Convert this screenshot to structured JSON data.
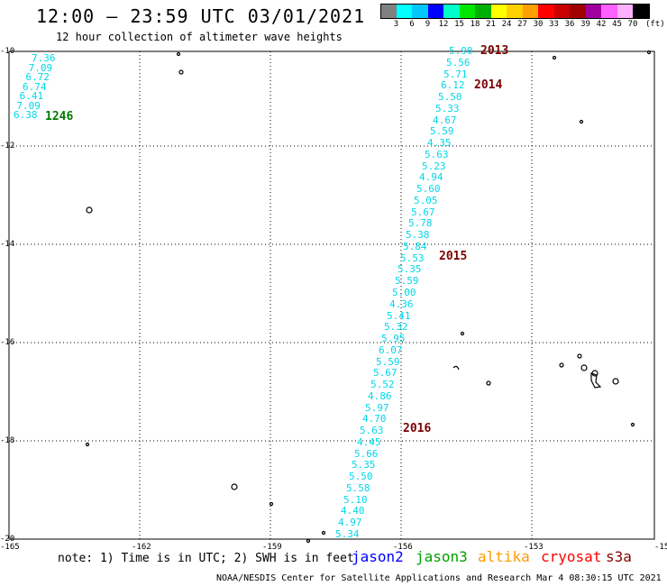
{
  "header": {
    "title": "12:00 – 23:59 UTC 03/01/2021",
    "subtitle": "12 hour collection of altimeter wave heights"
  },
  "legend": {
    "unit": "(ft)",
    "items": [
      {
        "label": "3",
        "color": "#808080"
      },
      {
        "label": "6",
        "color": "#00ffff"
      },
      {
        "label": "9",
        "color": "#00c8ff"
      },
      {
        "label": "12",
        "color": "#0000ff"
      },
      {
        "label": "15",
        "color": "#00ffc8"
      },
      {
        "label": "18",
        "color": "#00e600"
      },
      {
        "label": "21",
        "color": "#00b000"
      },
      {
        "label": "24",
        "color": "#ffff00"
      },
      {
        "label": "27",
        "color": "#ffd000"
      },
      {
        "label": "30",
        "color": "#ffa000"
      },
      {
        "label": "33",
        "color": "#ff0000"
      },
      {
        "label": "36",
        "color": "#c80000"
      },
      {
        "label": "39",
        "color": "#a00000"
      },
      {
        "label": "42",
        "color": "#a000a0"
      },
      {
        "label": "45",
        "color": "#ff60ff"
      },
      {
        "label": "70",
        "color": "#ffb0ff"
      },
      {
        "label": "",
        "color": "#000000"
      }
    ]
  },
  "axes": {
    "lat_labels": [
      "-10",
      "-12",
      "-14",
      "-16",
      "-18",
      "-20"
    ],
    "lon_labels": [
      "-165",
      "-162",
      "-159",
      "-156",
      "-153",
      "-15"
    ]
  },
  "track_main": {
    "values": [
      "5.90",
      "5.56",
      "5.71",
      "6.12",
      "5.50",
      "5.33",
      "4.67",
      "5.59",
      "4.35",
      "5.63",
      "5.23",
      "4.94",
      "5.60",
      "5.05",
      "5.67",
      "5.78",
      "5.38",
      "5.84",
      "5.53",
      "5.35",
      "5.59",
      "5.00",
      "4.36",
      "5.41",
      "5.32",
      "5.95",
      "6.07",
      "5.59",
      "5.67",
      "5.52",
      "4.86",
      "5.97",
      "4.70",
      "5.63",
      "4.45",
      "5.66",
      "5.35",
      "5.50",
      "5.58",
      "5.10",
      "4.40",
      "4.97",
      "5.34"
    ],
    "time_marks": [
      "2013",
      "2014",
      "2015",
      "2016"
    ]
  },
  "track_left": {
    "values": [
      "7.36",
      "7.09",
      "6.72",
      "6.74",
      "6.41",
      "7.09",
      "6.38"
    ],
    "time_mark": "1246"
  },
  "footer": {
    "note": "note: 1) Time is in UTC; 2) SWH is in feet",
    "satellites": [
      {
        "name": "jason2",
        "color": "#0000ff"
      },
      {
        "name": "jason3",
        "color": "#00a000"
      },
      {
        "name": "altika",
        "color": "#ff9900"
      },
      {
        "name": "cryosat",
        "color": "#ff0000"
      },
      {
        "name": "s3a",
        "color": "#8b0000"
      }
    ],
    "credit": "NOAA/NESDIS Center for Satellite Applications and Research   Mar  4 08:30:15 UTC 2021"
  }
}
